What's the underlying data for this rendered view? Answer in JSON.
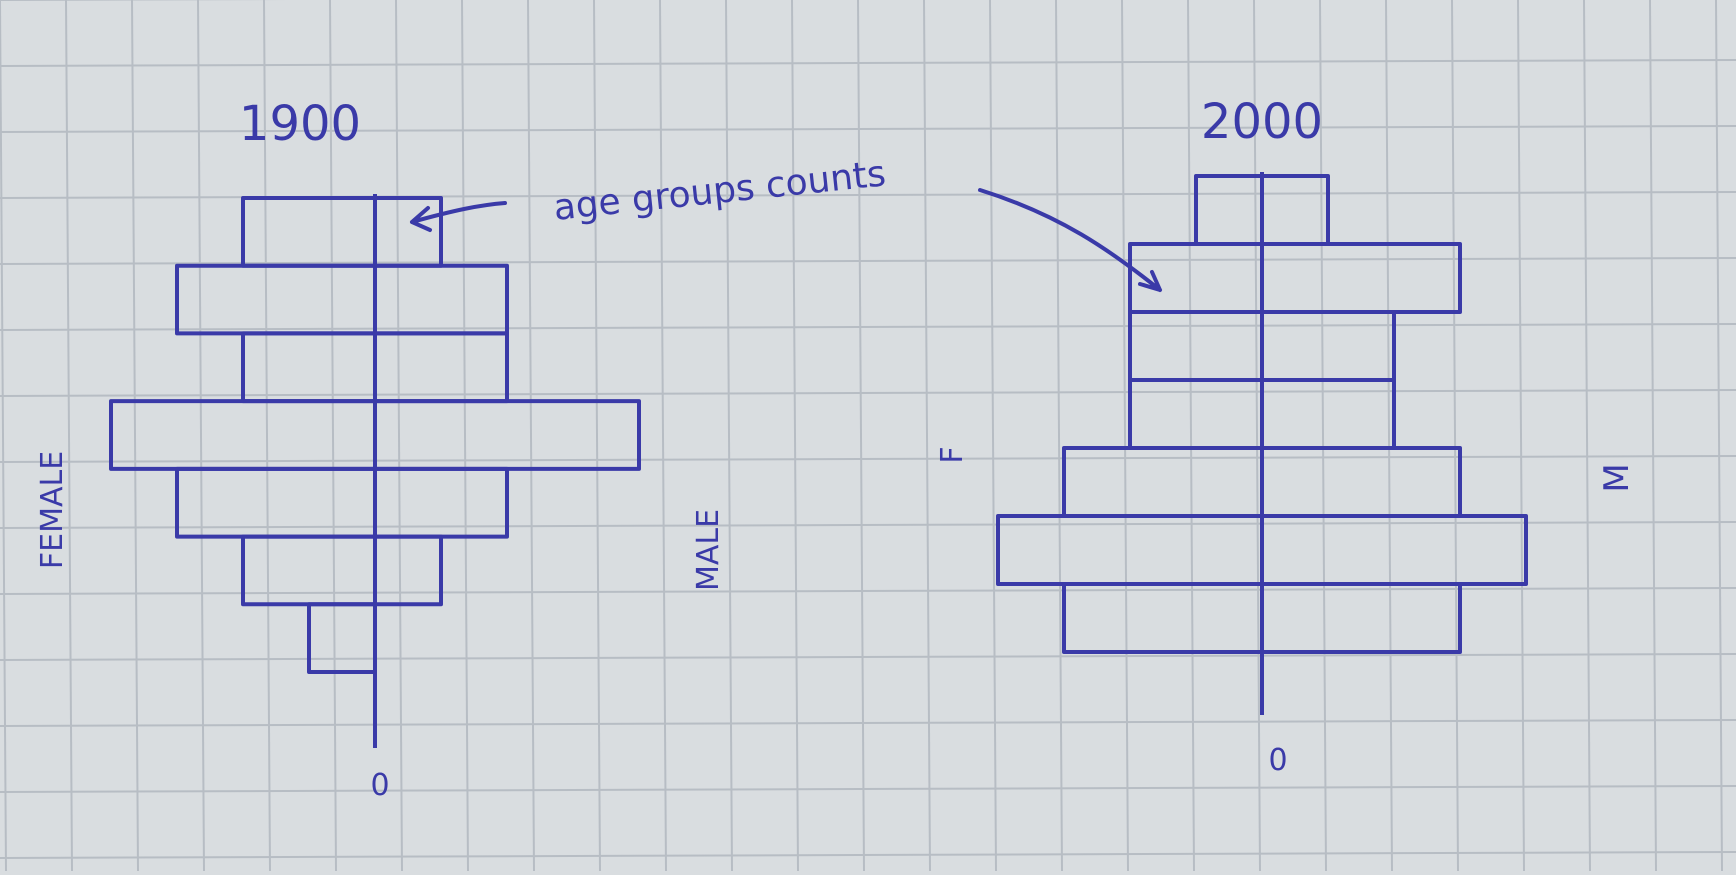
{
  "chart_data": [
    {
      "type": "bar",
      "title": "1900",
      "left_label": "FEMALE",
      "right_label": "MALE",
      "zero_label": "0",
      "annotation": "age groups counts",
      "ylabel": "",
      "xlim": [
        -4,
        4
      ],
      "series": [
        {
          "name": "FEMALE",
          "values": [
            2,
            3,
            2,
            4,
            3,
            2,
            1
          ]
        },
        {
          "name": "MALE",
          "values": [
            1,
            2,
            2,
            4,
            2,
            1,
            0
          ]
        }
      ]
    },
    {
      "type": "bar",
      "title": "2000",
      "left_label": "F",
      "right_label": "M",
      "zero_label": "0",
      "ylabel": "",
      "xlim": [
        -4,
        4
      ],
      "series": [
        {
          "name": "F",
          "values": [
            1,
            2,
            2,
            2,
            3,
            4,
            3
          ]
        },
        {
          "name": "M",
          "values": [
            1,
            3,
            2,
            2,
            3,
            4,
            3
          ]
        }
      ]
    }
  ],
  "colors": {
    "paper": "#d9dde0",
    "grid": "#b7bdc4",
    "ink": "#3a3aa8",
    "pencil": "#8d8f95"
  }
}
